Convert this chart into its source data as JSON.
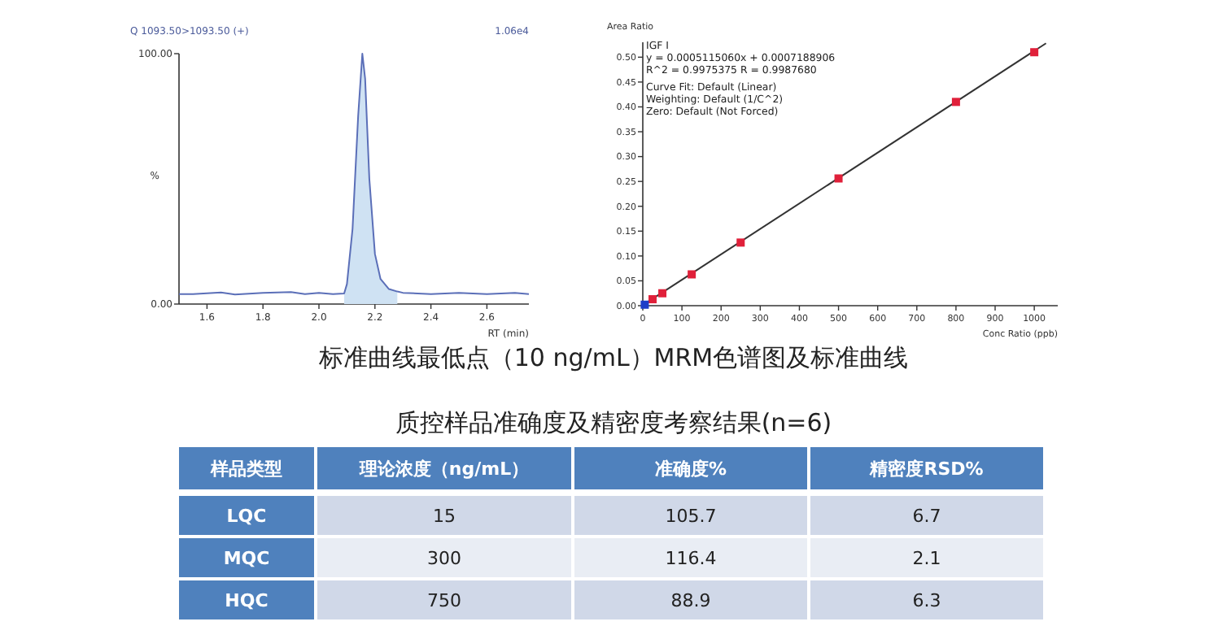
{
  "chart_data": [
    {
      "type": "line",
      "xlabel": "RT (min)",
      "ylabel": "%",
      "xlim": [
        1.5,
        2.75
      ],
      "ylim": [
        0,
        100
      ],
      "xticks": [
        {
          "value": 1.6,
          "label": "1.6"
        },
        {
          "value": 1.8,
          "label": "1.8"
        },
        {
          "value": 2.0,
          "label": "2.0"
        },
        {
          "value": 2.2,
          "label": "2.2"
        },
        {
          "value": 2.4,
          "label": "2.4"
        },
        {
          "value": 2.6,
          "label": "2.6"
        }
      ],
      "yticks": [
        {
          "value": 0,
          "label": "0.00"
        },
        {
          "value": 100,
          "label": "100.00"
        }
      ],
      "annotations": [
        "Q 1093.50>1093.50 (+)",
        "1.06e4",
        "标准曲线最低点（10 ng/mL）MRM色谱图及标准曲线"
      ],
      "series": [
        {
          "type": "area",
          "color": "#cfe2f3",
          "x": [
            2.09,
            2.1,
            2.12,
            2.14,
            2.155,
            2.165,
            2.18,
            2.2,
            2.22,
            2.25,
            2.28
          ],
          "values": [
            4.2,
            8,
            30,
            75,
            100,
            90,
            50,
            20,
            10,
            6,
            5
          ]
        },
        {
          "type": "line",
          "color": "#5b6fb8",
          "x": [
            1.5,
            1.55,
            1.6,
            1.65,
            1.7,
            1.8,
            1.9,
            1.95,
            2.0,
            2.05,
            2.09,
            2.1,
            2.12,
            2.14,
            2.155,
            2.165,
            2.18,
            2.2,
            2.22,
            2.25,
            2.28,
            2.3,
            2.4,
            2.5,
            2.6,
            2.7,
            2.75
          ],
          "values": [
            4,
            4,
            4.3,
            4.6,
            3.8,
            4.5,
            4.8,
            4,
            4.5,
            4,
            4.2,
            8,
            30,
            75,
            100,
            90,
            50,
            20,
            10,
            6,
            5,
            4.5,
            4,
            4.5,
            4,
            4.5,
            4
          ]
        }
      ]
    },
    {
      "type": "scatter",
      "xlabel": "Conc Ratio (ppb)",
      "ylabel": "Area Ratio",
      "xlim": [
        0,
        1060
      ],
      "ylim": [
        0,
        0.53
      ],
      "xticks": [
        0,
        100,
        200,
        300,
        400,
        500,
        600,
        700,
        800,
        900,
        1000
      ],
      "yticks": [
        {
          "value": 0,
          "label": "0.00"
        },
        {
          "value": 0.05,
          "label": "0.05"
        },
        {
          "value": 0.1,
          "label": "0.10"
        },
        {
          "value": 0.15,
          "label": "0.15"
        },
        {
          "value": 0.2,
          "label": "0.20"
        },
        {
          "value": 0.25,
          "label": "0.25"
        },
        {
          "value": 0.3,
          "label": "0.30"
        },
        {
          "value": 0.35,
          "label": "0.35"
        },
        {
          "value": 0.4,
          "label": "0.40"
        },
        {
          "value": 0.45,
          "label": "0.45"
        },
        {
          "value": 0.5,
          "label": "0.50"
        }
      ],
      "annotations": [
        "IGF I",
        "y = 0.0005115060x + 0.0007188906",
        "R^2 = 0.9975375    R = 0.9987680",
        "Curve Fit: Default (Linear)",
        "Weighting: Default (1/C^2)",
        "Zero: Default (Not Forced)"
      ],
      "series": [
        {
          "type": "line",
          "color": "#333333",
          "marker": "none",
          "x": [
            0,
            1030
          ],
          "values": [
            0.001,
            0.528
          ]
        },
        {
          "type": "scatter",
          "color": "#e0203a",
          "marker": "square",
          "x": [
            25,
            50,
            125,
            250,
            500,
            800,
            1000
          ],
          "values": [
            0.013,
            0.025,
            0.063,
            0.127,
            0.256,
            0.41,
            0.51
          ]
        },
        {
          "type": "scatter",
          "color": "#1f3fc8",
          "marker": "square",
          "x": [
            5
          ],
          "values": [
            0.002
          ]
        }
      ]
    },
    {
      "type": "other",
      "title": "质控样品准确度及精密度考察结果(n=6)",
      "ylabel": "样品类型",
      "categories": [
        "理论浓度（ng/mL）",
        "准确度%",
        "精密度RSD%"
      ],
      "y_categories": [
        "LQC",
        "MQC",
        "HQC"
      ],
      "data_labels": true,
      "cells": [
        [
          "15",
          "105.7",
          "6.7"
        ],
        [
          "300",
          "116.4",
          "2.1"
        ],
        [
          "750",
          "88.9",
          "6.3"
        ]
      ]
    }
  ]
}
